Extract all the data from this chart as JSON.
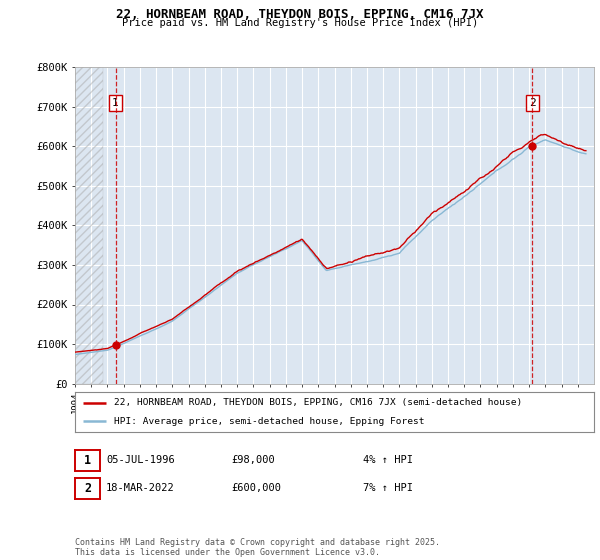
{
  "title": "22, HORNBEAM ROAD, THEYDON BOIS, EPPING, CM16 7JX",
  "subtitle": "Price paid vs. HM Land Registry's House Price Index (HPI)",
  "background_color": "#ffffff",
  "plot_bg_color": "#dce6f1",
  "grid_color": "#ffffff",
  "red_line_color": "#cc0000",
  "blue_line_color": "#89b8d4",
  "marker_color": "#cc0000",
  "vline1_x": 1996.5,
  "vline2_x": 2022.2,
  "point1_x": 1996.5,
  "point1_y": 98000,
  "point2_x": 2022.2,
  "point2_y": 600000,
  "ann1_label": "1",
  "ann2_label": "2",
  "xmin": 1994,
  "xmax": 2026,
  "ymin": 0,
  "ymax": 800000,
  "legend_label_red": "22, HORNBEAM ROAD, THEYDON BOIS, EPPING, CM16 7JX (semi-detached house)",
  "legend_label_blue": "HPI: Average price, semi-detached house, Epping Forest",
  "table_row1": [
    "1",
    "05-JUL-1996",
    "£98,000",
    "4% ↑ HPI"
  ],
  "table_row2": [
    "2",
    "18-MAR-2022",
    "£600,000",
    "7% ↑ HPI"
  ],
  "footer": "Contains HM Land Registry data © Crown copyright and database right 2025.\nThis data is licensed under the Open Government Licence v3.0.",
  "yticks": [
    0,
    100000,
    200000,
    300000,
    400000,
    500000,
    600000,
    700000,
    800000
  ],
  "ytick_labels": [
    "£0",
    "£100K",
    "£200K",
    "£300K",
    "£400K",
    "£500K",
    "£600K",
    "£700K",
    "£800K"
  ]
}
